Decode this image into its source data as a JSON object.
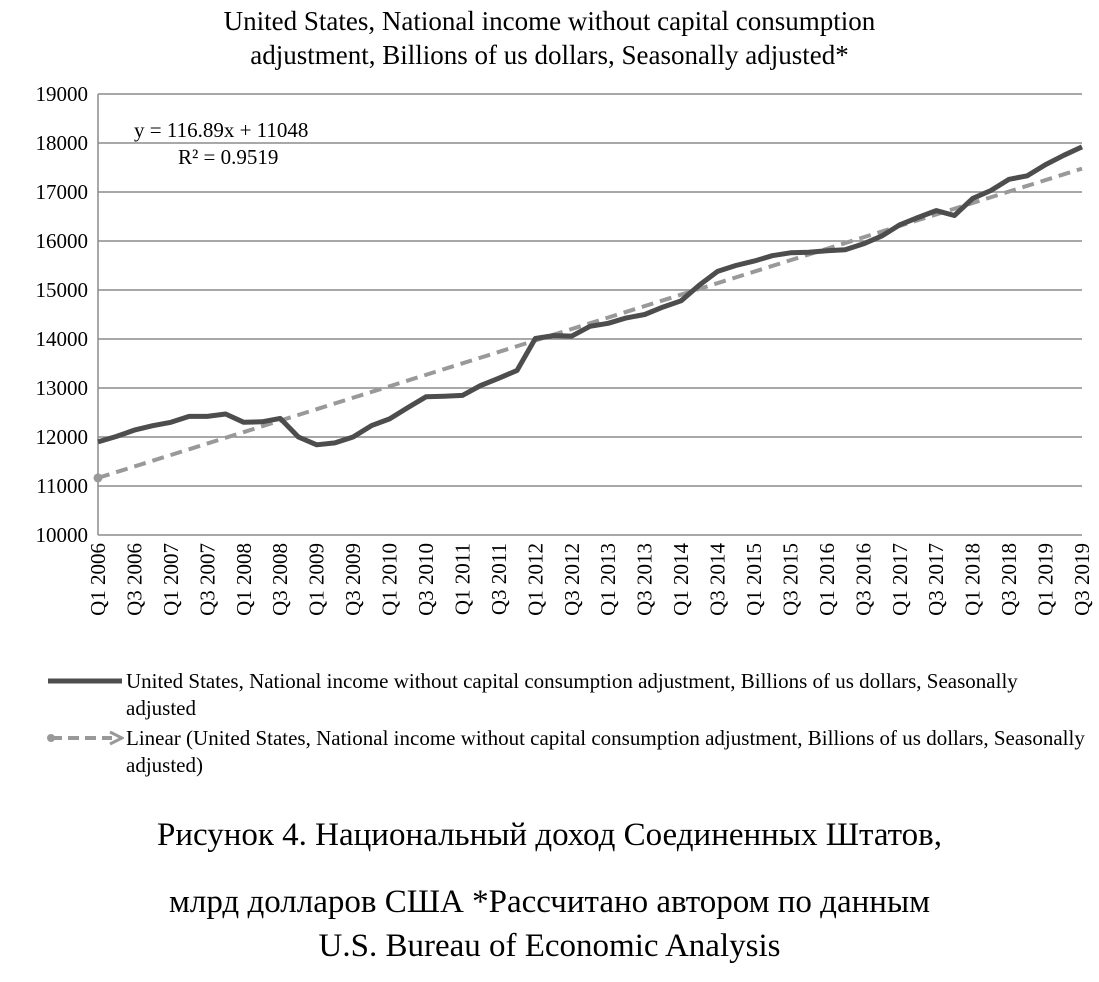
{
  "chart_data": {
    "type": "line",
    "title_lines": [
      "United States, National income without capital consumption",
      "adjustment, Billions of us dollars, Seasonally adjusted*"
    ],
    "xlabel": "",
    "ylabel": "",
    "ylim": [
      10000,
      19000
    ],
    "yticks": [
      10000,
      11000,
      12000,
      13000,
      14000,
      15000,
      16000,
      17000,
      18000,
      19000
    ],
    "grid": true,
    "legend_position": "bottom",
    "x_tick_labels": [
      "Q1 2006",
      "Q3 2006",
      "Q1 2007",
      "Q3 2007",
      "Q1 2008",
      "Q3 2008",
      "Q1 2009",
      "Q3 2009",
      "Q1 2010",
      "Q3 2010",
      "Q1 2011",
      "Q3 2011",
      "Q1 2012",
      "Q3 2012",
      "Q1 2013",
      "Q3 2013",
      "Q1 2014",
      "Q3 2014",
      "Q1 2015",
      "Q3 2015",
      "Q1 2016",
      "Q3 2016",
      "Q1 2017",
      "Q3 2017",
      "Q1 2018",
      "Q3 2018",
      "Q1 2019",
      "Q3 2019"
    ],
    "x": [
      "Q1 2006",
      "Q2 2006",
      "Q3 2006",
      "Q4 2006",
      "Q1 2007",
      "Q2 2007",
      "Q3 2007",
      "Q4 2007",
      "Q1 2008",
      "Q2 2008",
      "Q3 2008",
      "Q4 2008",
      "Q1 2009",
      "Q2 2009",
      "Q3 2009",
      "Q4 2009",
      "Q1 2010",
      "Q2 2010",
      "Q3 2010",
      "Q4 2010",
      "Q1 2011",
      "Q2 2011",
      "Q3 2011",
      "Q4 2011",
      "Q1 2012",
      "Q2 2012",
      "Q3 2012",
      "Q4 2012",
      "Q1 2013",
      "Q2 2013",
      "Q3 2013",
      "Q4 2013",
      "Q1 2014",
      "Q2 2014",
      "Q3 2014",
      "Q4 2014",
      "Q1 2015",
      "Q2 2015",
      "Q3 2015",
      "Q4 2015",
      "Q1 2016",
      "Q2 2016",
      "Q3 2016",
      "Q4 2016",
      "Q1 2017",
      "Q2 2017",
      "Q3 2017",
      "Q4 2017",
      "Q1 2018",
      "Q2 2018",
      "Q3 2018",
      "Q4 2018",
      "Q1 2019",
      "Q2 2019",
      "Q3 2019"
    ],
    "series": [
      {
        "name": "United States, National income without capital consumption adjustment, Billions of us dollars, Seasonally adjusted",
        "color": "#4d4d4d",
        "values": [
          11900,
          12010,
          12140,
          12230,
          12300,
          12420,
          12420,
          12470,
          12300,
          12310,
          12380,
          12000,
          11840,
          11880,
          12000,
          12230,
          12370,
          12600,
          12820,
          12830,
          12850,
          13050,
          13200,
          13360,
          14010,
          14070,
          14060,
          14260,
          14320,
          14430,
          14500,
          14650,
          14780,
          15100,
          15380,
          15500,
          15590,
          15700,
          15760,
          15770,
          15800,
          15820,
          15940,
          16100,
          16330,
          16480,
          16620,
          16520,
          16870,
          17030,
          17260,
          17330,
          17560,
          17750,
          17920
        ]
      }
    ],
    "trendline": {
      "name": "Linear (United States, National income without capital consumption adjustment, Billions of us dollars, Seasonally adjusted)",
      "color": "#999999",
      "equation": "y = 116.89x + 11048",
      "r_squared": "R² = 0.9519",
      "slope": 116.89,
      "intercept": 11048
    }
  },
  "caption_lines": [
    "Рисунок 4. Национальный доход Соединенных Штатов,",
    "млрд долларов США *Рассчитано автором по данным",
    "U.S. Bureau of Economic Analysis"
  ]
}
